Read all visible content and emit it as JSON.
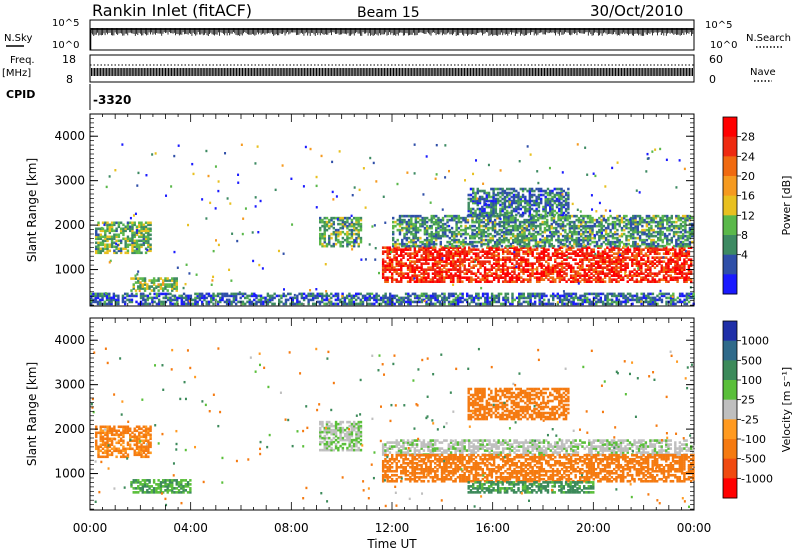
{
  "header": {
    "title": "Rankin Inlet (fitACF)",
    "beam": "Beam 15",
    "date": "30/Oct/2010"
  },
  "strips": {
    "nsky": {
      "label": "N.Sky",
      "tick_hi": "10^5",
      "tick_lo": "10^0",
      "right_hi": "10^5",
      "right_lo": "10^0"
    },
    "nsearch": {
      "label": "N.Search"
    },
    "freq": {
      "label_line1": "Freq.",
      "label_line2": "[MHz]",
      "tick_hi": "18",
      "tick_lo": "8"
    },
    "nave": {
      "label": "Nave",
      "right_hi": "60",
      "right_lo": "0"
    },
    "cpid": {
      "label": "CPID",
      "value": "-3320"
    }
  },
  "chart_data": [
    {
      "type": "heatmap",
      "panel": "power",
      "ylabel": "Slant Range [km]",
      "ylim": [
        180,
        4500
      ],
      "yticks": [
        1000,
        2000,
        3000,
        4000
      ],
      "xlim": [
        0,
        24
      ],
      "colorbar": {
        "label": "Power [dB]",
        "ticks": [
          "4",
          "8",
          "12",
          "16",
          "20",
          "24",
          "28"
        ],
        "colors": [
          "#1a1aff",
          "#2f4fa8",
          "#3d8a62",
          "#5ab84a",
          "#e8c020",
          "#f59a20",
          "#f06a10",
          "#ee2a10",
          "#ff0000"
        ]
      },
      "regions": [
        {
          "t": [
            0.2,
            2.4
          ],
          "r": [
            1350,
            2050
          ],
          "level": 11
        },
        {
          "t": [
            1.6,
            3.4
          ],
          "r": [
            500,
            800
          ],
          "level": 12
        },
        {
          "t": [
            9.1,
            10.8
          ],
          "r": [
            1500,
            2150
          ],
          "level": 10
        },
        {
          "t": [
            11.6,
            23.9
          ],
          "r": [
            700,
            1500
          ],
          "level": 26
        },
        {
          "t": [
            12.0,
            23.9
          ],
          "r": [
            1500,
            2200
          ],
          "level": 9
        },
        {
          "t": [
            15.0,
            19.0
          ],
          "r": [
            2200,
            2800
          ],
          "level": 7
        },
        {
          "t": [
            0.0,
            24.0
          ],
          "r": [
            200,
            450
          ],
          "level": 6
        }
      ]
    },
    {
      "type": "heatmap",
      "panel": "velocity",
      "ylabel": "Slant Range [km]",
      "ylim": [
        180,
        4500
      ],
      "yticks": [
        1000,
        2000,
        3000,
        4000
      ],
      "xlim": [
        0,
        24
      ],
      "xticks": [
        "00:00",
        "04:00",
        "08:00",
        "12:00",
        "16:00",
        "20:00",
        "00:00"
      ],
      "xlabel": "Time UT",
      "colorbar": {
        "label": "Velocity [m s⁻¹]",
        "ticks": [
          "1000",
          "500",
          "100",
          "25",
          "-25",
          "-100",
          "-500",
          "-1000"
        ],
        "colors": [
          "#1f2fa8",
          "#2f6a8a",
          "#3c8a5a",
          "#5abf3a",
          "#bfbfbf",
          "#ff9a20",
          "#f57a10",
          "#f04a10",
          "#ff0000"
        ]
      },
      "regions": [
        {
          "t": [
            0.2,
            2.4
          ],
          "r": [
            1350,
            2050
          ],
          "v": -150
        },
        {
          "t": [
            1.6,
            4.0
          ],
          "r": [
            550,
            850
          ],
          "v": 100
        },
        {
          "t": [
            9.1,
            10.8
          ],
          "r": [
            1500,
            2150
          ],
          "v": 20
        },
        {
          "t": [
            11.6,
            24.0
          ],
          "r": [
            1400,
            1750
          ],
          "v": 10
        },
        {
          "t": [
            11.6,
            24.0
          ],
          "r": [
            800,
            1400
          ],
          "v": -300
        },
        {
          "t": [
            15.0,
            20.0
          ],
          "r": [
            550,
            800
          ],
          "v": 150
        },
        {
          "t": [
            15.0,
            19.0
          ],
          "r": [
            2200,
            2900
          ],
          "v": -300
        }
      ]
    }
  ]
}
